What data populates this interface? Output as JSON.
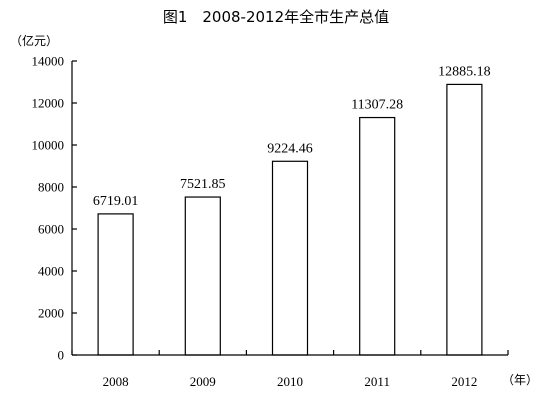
{
  "chart_data": {
    "type": "bar",
    "title": "图1　2008-2012年全市生产总值",
    "y_unit": "（亿元）",
    "x_unit": "（年）",
    "categories": [
      "2008",
      "2009",
      "2010",
      "2011",
      "2012"
    ],
    "values": [
      6719.01,
      7521.85,
      9224.46,
      11307.28,
      12885.18
    ],
    "value_labels": [
      "6719.01",
      "7521.85",
      "9224.46",
      "11307.28",
      "12885.18"
    ],
    "ylim": [
      0,
      14000
    ],
    "yticks": [
      "0",
      "2000",
      "4000",
      "6000",
      "8000",
      "10000",
      "12000",
      "14000"
    ],
    "grid": false,
    "legend": "none",
    "colors": {
      "bar_fill": "#ffffff",
      "bar_stroke": "#000000"
    }
  }
}
